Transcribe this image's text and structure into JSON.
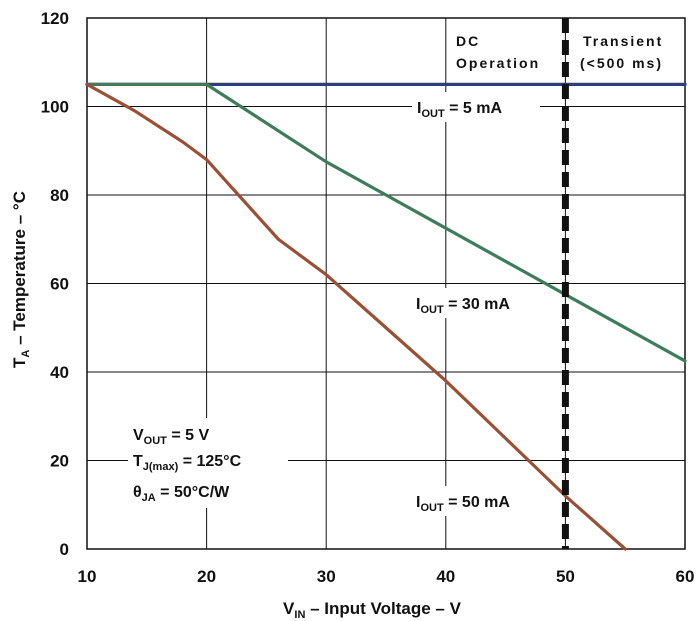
{
  "chart_data": {
    "type": "line",
    "xlabel": {
      "main": "V",
      "sub": "IN",
      "rest": " – Input Voltage – V"
    },
    "ylabel": {
      "main": "T",
      "sub": "A",
      "rest": " – Temperature – °C"
    },
    "xlim": [
      10,
      60
    ],
    "ylim": [
      0,
      120
    ],
    "xticks": [
      "10",
      "20",
      "30",
      "40",
      "50",
      "60"
    ],
    "yticks": [
      "0",
      "20",
      "40",
      "60",
      "80",
      "100",
      "120"
    ],
    "grid": true,
    "series": [
      {
        "name": "IOUT = 5 mA",
        "label_main": "I",
        "label_sub": "OUT",
        "label_rest": " = 5 mA",
        "color": "#2e3a8c",
        "x": [
          10,
          60
        ],
        "y": [
          105,
          105
        ]
      },
      {
        "name": "IOUT = 30 mA",
        "label_main": "I",
        "label_sub": "OUT",
        "label_rest": " = 30 mA",
        "color": "#3f7d5a",
        "x": [
          10,
          20,
          30,
          40,
          50,
          60
        ],
        "y": [
          105,
          105,
          87.5,
          72.5,
          57.5,
          42.5
        ]
      },
      {
        "name": "IOUT = 50 mA",
        "label_main": "I",
        "label_sub": "OUT",
        "label_rest": " = 50 mA",
        "color": "#9a5035",
        "x": [
          10,
          14,
          18,
          20,
          22,
          26,
          30,
          35,
          40,
          45,
          50,
          55
        ],
        "y": [
          105,
          99,
          92,
          88,
          82,
          70,
          62,
          50,
          38,
          25,
          12,
          0
        ]
      }
    ],
    "divider": {
      "x": 50,
      "style": "dashed",
      "color": "#111111"
    },
    "regions": [
      {
        "line1": "DC",
        "line2": "Operation"
      },
      {
        "line1": "Transient",
        "line2": "(<500 ms)"
      }
    ],
    "conditions": [
      {
        "main": "V",
        "sub": "OUT",
        "rest": " = 5 V"
      },
      {
        "main": "T",
        "sub": "J(max)",
        "rest": " = 125°C"
      },
      {
        "main": "θ",
        "sub": "JA",
        "rest": " = 50°C/W"
      }
    ]
  }
}
